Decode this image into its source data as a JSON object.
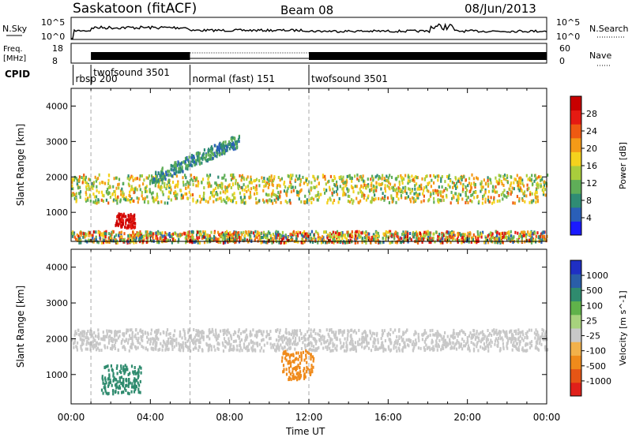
{
  "header": {
    "station": "Saskatoon (fitACF)",
    "beam": "Beam 08",
    "date": "08/Jun/2013"
  },
  "top_panels": {
    "nsky_label": "N.Sky",
    "nsky_ticks": [
      "10^5",
      "10^0"
    ],
    "nsky_right_ticks": [
      "10^5",
      "10^0"
    ],
    "nsearch_label": "N.Search",
    "freq_label": "Freq.",
    "freq_unit": "[MHz]",
    "freq_ticks": [
      "18",
      "8"
    ],
    "nave_ticks": [
      "60",
      "0"
    ],
    "nave_label": "Nave",
    "cpid_label": "CPID",
    "cpid_segments": [
      {
        "label": "rbsp 200",
        "start_h": 0.1,
        "end_h": 1.0
      },
      {
        "label": "twofsound 3501",
        "start_h": 1.0,
        "end_h": 6.0
      },
      {
        "label": "normal (fast) 151",
        "start_h": 6.0,
        "end_h": 12.0
      },
      {
        "label": "twofsound 3501",
        "start_h": 12.0,
        "end_h": 24.0
      }
    ]
  },
  "colors": {
    "power_scale": [
      "#1a1aff",
      "#2a5fb8",
      "#2f8c74",
      "#5fae58",
      "#a9cd3c",
      "#f4d21d",
      "#f49a17",
      "#ef5a12",
      "#e51a12",
      "#c80000"
    ],
    "velocity_scale": [
      "#1f2fc4",
      "#2a5ea8",
      "#2f8b6e",
      "#60b24a",
      "#a7d27d",
      "#c8c8c8",
      "#f2b14b",
      "#ef8a1b",
      "#e65515",
      "#e0201a"
    ]
  },
  "chart_data": [
    {
      "type": "heatmap",
      "title": "",
      "xlabel": "Time UT",
      "ylabel": "Slant Range [km]",
      "xlim": [
        0,
        24
      ],
      "ylim": [
        180,
        4500
      ],
      "x_ticks": [
        "00:00",
        "04:00",
        "08:00",
        "12:00",
        "16:00",
        "20:00",
        "00:00"
      ],
      "y_ticks": [
        "1000",
        "2000",
        "3000",
        "4000"
      ],
      "colorbar": {
        "label": "Power [dB]",
        "ticks": [
          "4",
          "8",
          "12",
          "16",
          "20",
          "24",
          "28"
        ],
        "range": [
          0,
          30
        ]
      },
      "features": [
        {
          "name": "F-region band",
          "t_start": 0,
          "t_end": 24,
          "range_km": [
            1300,
            2100
          ],
          "power_db": [
            8,
            22
          ]
        },
        {
          "name": "rising trace",
          "t_start": 4,
          "t_end": 8.5,
          "range_km": [
            1800,
            3100
          ],
          "power_db": [
            4,
            12
          ]
        },
        {
          "name": "near-range echoes",
          "t_start": 0,
          "t_end": 24,
          "range_km": [
            180,
            500
          ],
          "power_db": [
            4,
            28
          ]
        },
        {
          "name": "strong patch",
          "t_start": 2.2,
          "t_end": 3.2,
          "range_km": [
            600,
            1000
          ],
          "power_db": [
            24,
            30
          ]
        }
      ]
    },
    {
      "type": "heatmap",
      "title": "",
      "xlabel": "Time UT",
      "ylabel": "Slant Range [km]",
      "xlim": [
        0,
        24
      ],
      "ylim": [
        180,
        4500
      ],
      "x_ticks": [
        "00:00",
        "04:00",
        "08:00",
        "12:00",
        "16:00",
        "20:00",
        "00:00"
      ],
      "y_ticks": [
        "1000",
        "2000",
        "3000",
        "4000"
      ],
      "colorbar": {
        "label": "Velocity [m s^-1]",
        "ticks": [
          "1000",
          "500",
          "100",
          "25",
          "-25",
          "-100",
          "-500",
          "-1000"
        ],
        "range": [
          -1200,
          1200
        ]
      },
      "features": [
        {
          "name": "ground scatter band",
          "t_start": 0,
          "t_end": 24,
          "range_km": [
            1700,
            2300
          ],
          "velocity_ms": [
            -25,
            25
          ]
        },
        {
          "name": "negative velocity patch",
          "t_start": 10.6,
          "t_end": 12.2,
          "range_km": [
            900,
            1700
          ],
          "velocity_ms": [
            -500,
            -100
          ]
        },
        {
          "name": "positive velocity patch",
          "t_start": 1.5,
          "t_end": 3.5,
          "range_km": [
            500,
            1300
          ],
          "velocity_ms": [
            100,
            500
          ]
        }
      ]
    }
  ]
}
